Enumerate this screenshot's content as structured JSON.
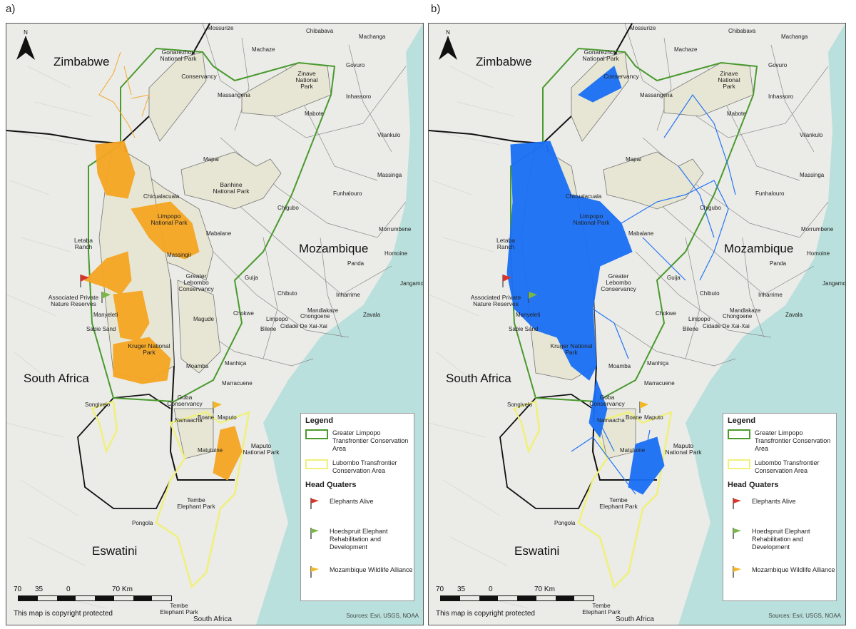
{
  "panels": [
    {
      "label": "a)",
      "track_color": "#f5a623"
    },
    {
      "label": "b)",
      "track_color": "#1a6ff5"
    }
  ],
  "countries": {
    "zimbabwe": "Zimbabwe",
    "mozambique": "Mozambique",
    "south_africa": "South Africa",
    "eswatini": "Eswatini",
    "south_africa_bottom": "South Africa"
  },
  "parks": {
    "gonarezhou": "Gonarezhou National Park",
    "conservancy": "Conservancy",
    "zinave": "Zinave National Park",
    "banhine": "Banhine National Park",
    "limpopo": "Limpopo National Park",
    "greater_lebombo": "Greater Lebombo Conservancy",
    "kruger": "Kruger National Park",
    "goba": "Goba Conservancy",
    "maputo_np": "Maputo National Park",
    "tembe": "Tembe Elephant Park",
    "tembe_bottom": "Tembe Elephant Park",
    "letaba": "Letaba Ranch",
    "apnr": "Associated Private Nature Reserves"
  },
  "places": {
    "mossurize": "Mossurize",
    "chibabava": "Chibabava",
    "machanga": "Machanga",
    "machaze": "Machaze",
    "govuro": "Govuro",
    "massangena": "Massangena",
    "inhassoro": "Inhassoro",
    "mabote": "Mabote",
    "vilankulo": "Vilankulo",
    "mapai": "Mapai",
    "massinga": "Massinga",
    "funhalouro": "Funhalouro",
    "chicualacuala": "Chicualacuala",
    "chigubo": "Chigubo",
    "morrumbene": "Morrumbene",
    "mabalane": "Mabalane",
    "massingir": "Massingir",
    "homoine": "Homoine",
    "panda": "Panda",
    "jangamo": "Jangamo",
    "guija": "Guija",
    "chibuto": "Chibuto",
    "inharrime": "Inharrime",
    "manyeleti": "Manyeleti",
    "magude": "Magude",
    "chokwe": "Chokwe",
    "mandlakaze": "Mandlakaze",
    "zavala": "Zavala",
    "sabie_sand": "Sabie Sand",
    "limpopo": "Limpopo",
    "chongoene": "Chongoene",
    "bilene": "Bilene",
    "cidade_de_xai_xai": "Cidade De Xai-Xai",
    "moamba": "Moamba",
    "manhica": "Manhiça",
    "marracuene": "Marracuene",
    "songivelo": "Songivelo",
    "boane": "Boane",
    "maputo": "Maputo",
    "namaacha": "Namaacha",
    "matutuine": "Matutuine",
    "pongola": "Pongola"
  },
  "legend": {
    "title": "Legend",
    "gltfca": "Greater Limpopo Transfrontier Conservation Area",
    "ltfca": "Lubombo Transfrontier Conservation Area",
    "hq_title": "Head Quaters",
    "hq1": "Elephants Alive",
    "hq2": "Hoedspruit Elephant Rehabilitation and Development",
    "hq3": "Mozambique Wildlife Alliance",
    "colors": {
      "gltfca": "#4a9a2e",
      "ltfca": "#f0f07a",
      "hq1": "#d9342b",
      "hq2": "#7ab648",
      "hq3": "#f2b824"
    }
  },
  "scale": {
    "ticks": [
      "70",
      "35",
      "0",
      "70 Km"
    ]
  },
  "north": "N",
  "copyright": "This map is copyright protected",
  "sources": "Sources: Esri, USGS, NOAA",
  "colors": {
    "sea": "#b9e0dc",
    "land": "#ebebe8",
    "park_fill": "#e7e6d4",
    "gltfca": "#4a9a2e",
    "ltfca": "#f0f07a"
  }
}
